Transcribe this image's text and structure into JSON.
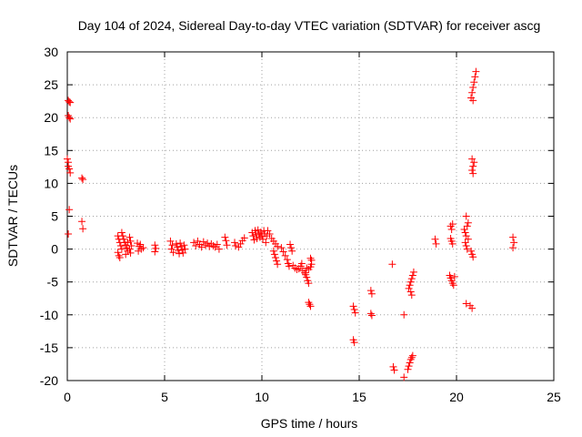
{
  "chart_data": {
    "type": "scatter",
    "title": "Day 104 of 2024, Sidereal Day-to-day VTEC variation (SDTVAR) for receiver ascg",
    "xlabel": "GPS time / hours",
    "ylabel": "SDTVAR / TECUs",
    "xlim": [
      0,
      25
    ],
    "ylim": [
      -20,
      30
    ],
    "xticks": [
      0,
      5,
      10,
      15,
      20,
      25
    ],
    "yticks": [
      -20,
      -15,
      -10,
      -5,
      0,
      5,
      10,
      15,
      20,
      25,
      30
    ],
    "grid": true,
    "marker": "+",
    "color": "#ff0000",
    "series": [
      {
        "name": "SDTVAR",
        "points": [
          [
            0.05,
            22.6
          ],
          [
            0.1,
            22.4
          ],
          [
            0.15,
            22.3
          ],
          [
            0.05,
            20.3
          ],
          [
            0.1,
            20.0
          ],
          [
            0.15,
            19.8
          ],
          [
            0.0,
            13.7
          ],
          [
            0.05,
            13.2
          ],
          [
            0.05,
            12.6
          ],
          [
            0.1,
            12.2
          ],
          [
            0.15,
            11.6
          ],
          [
            0.1,
            6.0
          ],
          [
            0.05,
            2.3
          ],
          [
            0.75,
            10.8
          ],
          [
            0.8,
            10.6
          ],
          [
            0.75,
            4.2
          ],
          [
            0.8,
            3.1
          ],
          [
            2.6,
            2.0
          ],
          [
            2.65,
            1.5
          ],
          [
            2.7,
            1.0
          ],
          [
            2.75,
            0.5
          ],
          [
            2.8,
            0.0
          ],
          [
            2.6,
            -0.5
          ],
          [
            2.65,
            -1.0
          ],
          [
            2.7,
            -1.3
          ],
          [
            2.8,
            2.5
          ],
          [
            2.85,
            2.0
          ],
          [
            2.9,
            1.5
          ],
          [
            2.95,
            1.0
          ],
          [
            3.0,
            0.6
          ],
          [
            3.05,
            0.2
          ],
          [
            3.1,
            -0.3
          ],
          [
            3.0,
            -0.8
          ],
          [
            3.2,
            1.8
          ],
          [
            3.25,
            1.2
          ],
          [
            3.3,
            0.5
          ],
          [
            3.2,
            0.0
          ],
          [
            3.25,
            -0.6
          ],
          [
            3.1,
            1.0
          ],
          [
            3.6,
            0.9
          ],
          [
            3.7,
            0.4
          ],
          [
            3.8,
            0.0
          ],
          [
            3.65,
            -0.3
          ],
          [
            3.75,
            0.7
          ],
          [
            3.9,
            0.2
          ],
          [
            4.5,
            0.6
          ],
          [
            4.55,
            0.1
          ],
          [
            4.5,
            -0.4
          ],
          [
            5.3,
            1.2
          ],
          [
            5.4,
            0.6
          ],
          [
            5.35,
            0.0
          ],
          [
            5.45,
            -0.5
          ],
          [
            5.6,
            0.8
          ],
          [
            5.65,
            0.3
          ],
          [
            5.7,
            -0.2
          ],
          [
            5.75,
            -0.7
          ],
          [
            5.8,
            0.9
          ],
          [
            5.85,
            0.4
          ],
          [
            5.9,
            -0.1
          ],
          [
            5.95,
            -0.6
          ],
          [
            6.0,
            0.6
          ],
          [
            6.05,
            0.0
          ],
          [
            6.5,
            1.0
          ],
          [
            6.6,
            0.5
          ],
          [
            6.7,
            1.2
          ],
          [
            6.8,
            0.7
          ],
          [
            6.9,
            0.3
          ],
          [
            7.0,
            1.1
          ],
          [
            7.1,
            0.6
          ],
          [
            7.2,
            0.9
          ],
          [
            7.3,
            0.4
          ],
          [
            7.4,
            0.8
          ],
          [
            7.5,
            0.5
          ],
          [
            7.6,
            0.3
          ],
          [
            7.7,
            0.7
          ],
          [
            7.8,
            0.0
          ],
          [
            8.1,
            1.8
          ],
          [
            8.15,
            1.3
          ],
          [
            8.2,
            0.6
          ],
          [
            8.6,
            1.0
          ],
          [
            8.65,
            0.5
          ],
          [
            8.8,
            0.3
          ],
          [
            8.9,
            0.8
          ],
          [
            9.0,
            1.3
          ],
          [
            9.1,
            1.7
          ],
          [
            9.5,
            2.5
          ],
          [
            9.55,
            2.0
          ],
          [
            9.6,
            1.4
          ],
          [
            9.65,
            2.8
          ],
          [
            9.7,
            2.2
          ],
          [
            9.75,
            1.6
          ],
          [
            9.8,
            2.9
          ],
          [
            9.85,
            2.4
          ],
          [
            9.9,
            1.8
          ],
          [
            9.95,
            2.6
          ],
          [
            10.0,
            2.0
          ],
          [
            10.05,
            1.5
          ],
          [
            10.1,
            2.8
          ],
          [
            10.15,
            2.3
          ],
          [
            10.2,
            1.0
          ],
          [
            10.25,
            2.0
          ],
          [
            10.3,
            2.8
          ],
          [
            10.4,
            2.3
          ],
          [
            10.5,
            1.6
          ],
          [
            10.6,
            1.2
          ],
          [
            10.7,
            0.8
          ],
          [
            10.8,
            0.4
          ],
          [
            10.6,
            -0.3
          ],
          [
            10.65,
            -0.8
          ],
          [
            10.7,
            -1.3
          ],
          [
            10.75,
            -1.8
          ],
          [
            10.8,
            -2.3
          ],
          [
            11.0,
            0.2
          ],
          [
            11.1,
            -0.4
          ],
          [
            11.2,
            -1.0
          ],
          [
            11.3,
            -1.6
          ],
          [
            11.35,
            -2.2
          ],
          [
            11.4,
            -2.6
          ],
          [
            11.45,
            0.7
          ],
          [
            11.5,
            0.2
          ],
          [
            11.55,
            -0.3
          ],
          [
            11.6,
            -2.5
          ],
          [
            11.7,
            -2.9
          ],
          [
            11.8,
            -3.1
          ],
          [
            11.9,
            -3.0
          ],
          [
            12.0,
            -2.6
          ],
          [
            12.05,
            -2.2
          ],
          [
            12.1,
            -3.3
          ],
          [
            12.2,
            -3.6
          ],
          [
            12.25,
            -3.9
          ],
          [
            12.3,
            -4.3
          ],
          [
            12.35,
            -4.8
          ],
          [
            12.4,
            -5.2
          ],
          [
            12.3,
            -2.9
          ],
          [
            12.4,
            -3.1
          ],
          [
            12.5,
            -2.7
          ],
          [
            12.55,
            -2.3
          ],
          [
            12.5,
            -1.4
          ],
          [
            12.55,
            -1.7
          ],
          [
            12.4,
            -8.1
          ],
          [
            12.45,
            -8.4
          ],
          [
            12.5,
            -8.7
          ],
          [
            14.7,
            -8.7
          ],
          [
            14.75,
            -9.2
          ],
          [
            14.8,
            -9.7
          ],
          [
            14.7,
            -13.8
          ],
          [
            14.75,
            -14.2
          ],
          [
            15.6,
            -6.3
          ],
          [
            15.65,
            -6.8
          ],
          [
            15.6,
            -9.8
          ],
          [
            15.65,
            -10.1
          ],
          [
            16.7,
            -2.3
          ],
          [
            16.75,
            -17.9
          ],
          [
            16.8,
            -18.4
          ],
          [
            17.3,
            -10.0
          ],
          [
            17.3,
            -19.5
          ],
          [
            17.55,
            -6.0
          ],
          [
            17.6,
            -5.5
          ],
          [
            17.65,
            -5.0
          ],
          [
            17.7,
            -4.5
          ],
          [
            17.75,
            -4.0
          ],
          [
            17.8,
            -3.5
          ],
          [
            17.65,
            -6.5
          ],
          [
            17.7,
            -7.0
          ],
          [
            17.5,
            -18.3
          ],
          [
            17.55,
            -17.8
          ],
          [
            17.6,
            -17.3
          ],
          [
            17.65,
            -16.8
          ],
          [
            17.7,
            -16.5
          ],
          [
            17.75,
            -16.2
          ],
          [
            18.9,
            1.5
          ],
          [
            18.95,
            0.8
          ],
          [
            19.7,
            3.5
          ],
          [
            19.75,
            3.0
          ],
          [
            19.8,
            3.8
          ],
          [
            19.7,
            1.6
          ],
          [
            19.75,
            1.2
          ],
          [
            19.8,
            0.8
          ],
          [
            19.65,
            -4.0
          ],
          [
            19.7,
            -4.4
          ],
          [
            19.75,
            -4.8
          ],
          [
            19.8,
            -5.2
          ],
          [
            19.85,
            -5.5
          ],
          [
            19.9,
            -4.2
          ],
          [
            20.4,
            3.0
          ],
          [
            20.45,
            2.5
          ],
          [
            20.5,
            2.0
          ],
          [
            20.55,
            3.5
          ],
          [
            20.6,
            4.0
          ],
          [
            20.5,
            5.0
          ],
          [
            20.45,
            1.0
          ],
          [
            20.5,
            0.5
          ],
          [
            20.55,
            0.0
          ],
          [
            20.6,
            1.5
          ],
          [
            20.5,
            -8.3
          ],
          [
            20.7,
            -8.6
          ],
          [
            20.8,
            -9.0
          ],
          [
            20.8,
            12.0
          ],
          [
            20.85,
            12.6
          ],
          [
            20.9,
            13.2
          ],
          [
            20.8,
            13.7
          ],
          [
            20.85,
            11.5
          ],
          [
            20.75,
            23.0
          ],
          [
            20.8,
            23.8
          ],
          [
            20.85,
            24.6
          ],
          [
            20.9,
            25.4
          ],
          [
            20.95,
            26.2
          ],
          [
            21.0,
            27.0
          ],
          [
            20.85,
            22.6
          ],
          [
            20.75,
            -0.3
          ],
          [
            20.8,
            -0.8
          ],
          [
            20.85,
            -1.2
          ],
          [
            22.9,
            1.8
          ],
          [
            22.95,
            1.0
          ],
          [
            22.9,
            0.2
          ]
        ]
      }
    ]
  }
}
